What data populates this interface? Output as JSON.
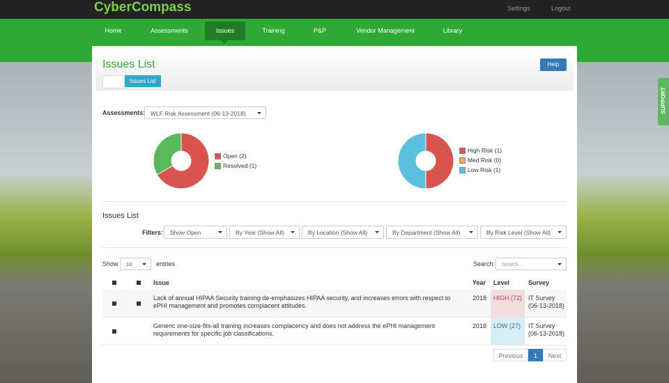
{
  "header": {
    "brand": "CyberCompass",
    "settings": "Settings",
    "logout": "Logout"
  },
  "nav": [
    "Home",
    "Assessments",
    "Issues",
    "Training",
    "P&P",
    "Vendor Management",
    "Library"
  ],
  "page": {
    "title": "Issues List",
    "breadcrumb": "Issues List",
    "help": "Help"
  },
  "assessment": {
    "label": "Assessments:",
    "selected": "WLF Risk Assessment (06-13-2018)"
  },
  "status_chart": {
    "slices": [
      {
        "label": "Open (2)",
        "value": 2,
        "color": "#d9534f"
      },
      {
        "label": "Resolved (1)",
        "value": 1,
        "color": "#5cb85c"
      }
    ]
  },
  "risk_chart": {
    "slices": [
      {
        "label": "High Risk (1)",
        "value": 1,
        "color": "#d9534f"
      },
      {
        "label": "Med Risk (0)",
        "value": 0,
        "color": "#f0ad4e"
      },
      {
        "label": "Low Risk (1)",
        "value": 1,
        "color": "#5bc0de"
      }
    ]
  },
  "issues": {
    "title": "Issues List",
    "filters_label": "Filters:",
    "filters": [
      "Show Open",
      "By Year (Show All)",
      "By Location (Show All)",
      "By Department (Show All)",
      "By Risk Level (Show All)"
    ],
    "show": "Show",
    "page_size": "10",
    "entries": "entries",
    "search_label": "Search:",
    "search_placeholder": "Search...",
    "columns": [
      "Issue",
      "Year",
      "Level",
      "Survey"
    ],
    "rows": [
      {
        "issue": "Lack of annual HIPAA Security training de-emphasizes HIPAA security, and increases errors with respect to ePHI management and promotes complacent attitudes.",
        "year": 2018,
        "level": "HIGH (72)",
        "survey": "IT Survey (06-13-2018)"
      },
      {
        "issue": "Generic one-size-fits-all training increases complacency and does not address the ePHI management requirements for specific job classifications.",
        "year": 2018,
        "level": "LOW (27)",
        "survey": "IT Survey (06-13-2018)"
      }
    ],
    "pagination": {
      "previous": "Previous",
      "page": "1",
      "next": "Next"
    }
  },
  "support": "SUPPORT"
}
